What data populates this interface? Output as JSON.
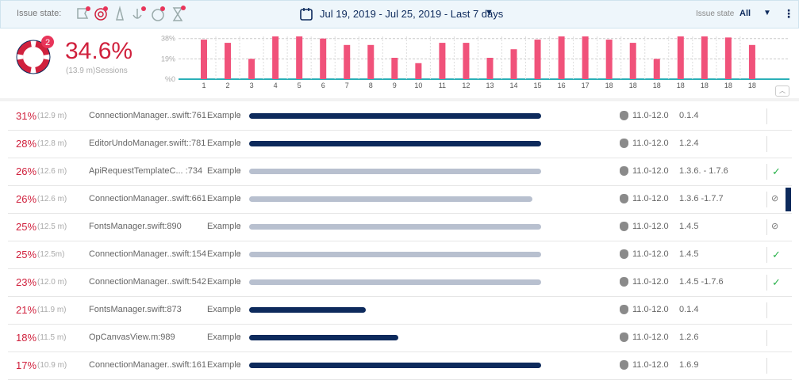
{
  "header": {
    "issue_state_label": "Issue state:",
    "date_range": "Jul 19, 2019 - Jul 25, 2019 - Last 7 days",
    "filter_label": "Issue state",
    "filter_value": "All"
  },
  "summary": {
    "badge": "2",
    "percent": "34.6%",
    "sessions": "(13.9 m)Sessions"
  },
  "chart": {
    "type": "bar",
    "color": "#f0527a",
    "categories": [
      "1",
      "2",
      "3",
      "4",
      "5",
      "6",
      "7",
      "8",
      "9",
      "10",
      "11",
      "12",
      "13",
      "14",
      "15",
      "16",
      "17",
      "18",
      "18",
      "18",
      "18",
      "18",
      "18",
      "18"
    ],
    "values": [
      37,
      34,
      19,
      40,
      40,
      38,
      32,
      32,
      20,
      15,
      34,
      34,
      20,
      28,
      37,
      40,
      40,
      37,
      34,
      19,
      40,
      40,
      39,
      32
    ],
    "ylim": [
      0,
      40
    ],
    "yticks": [
      {
        "value": 38,
        "label": "38%"
      },
      {
        "value": 19,
        "label": "19%"
      },
      {
        "value": 0,
        "label": "%0"
      }
    ]
  },
  "table": {
    "link": "Example",
    "rows": [
      {
        "percent": "31%",
        "time": "(12.9 m)",
        "file": "ConnectionManager..swift:761",
        "progress": 100,
        "color": "#0d2a5c",
        "os": "11.0-12.0",
        "version": "0.1.4"
      },
      {
        "percent": "28%",
        "time": "(12.8 m)",
        "file": "EditorUndoManager.swift::781",
        "progress": 100,
        "color": "#0d2a5c",
        "os": "11.0-12.0",
        "version": "1.2.4"
      },
      {
        "percent": "26%",
        "time": "(12.6 m)",
        "file": "ApiRequestTemplateC...  :734",
        "progress": 100,
        "color": "#b8c0cf",
        "os": "11.0-12.0",
        "version": "1.3.6. - 1.7.6"
      },
      {
        "percent": "26%",
        "time": "(12.6 m)",
        "file": "ConnectionManager..swift:661",
        "progress": 97,
        "color": "#b8c0cf",
        "os": "11.0-12.0",
        "version": "1.3.6 -1.7.7"
      },
      {
        "percent": "25%",
        "time": "(12.5 m)",
        "file": "FontsManager.swift:890",
        "progress": 100,
        "color": "#b8c0cf",
        "os": "11.0-12.0",
        "version": "1.4.5"
      },
      {
        "percent": "25%",
        "time": "(12.5m)",
        "file": "ConnectionManager..swift:154",
        "progress": 100,
        "color": "#b8c0cf",
        "os": "11.0-12.0",
        "version": "1.4.5"
      },
      {
        "percent": "23%",
        "time": "(12.0 m)",
        "file": "ConnectionManager..swift:542",
        "progress": 100,
        "color": "#b8c0cf",
        "os": "11.0-12.0",
        "version": "1.4.5 -1.7.6"
      },
      {
        "percent": "21%",
        "time": "(11.9 m)",
        "file": "FontsManager.swift:873",
        "progress": 40,
        "color": "#0d2a5c",
        "os": "11.0-12.0",
        "version": "0.1.4"
      },
      {
        "percent": "18%",
        "time": "(11.5 m)",
        "file": "OpCanvasView.m:989",
        "progress": 51,
        "color": "#0d2a5c",
        "os": "11.0-12.0",
        "version": "1.2.6"
      },
      {
        "percent": "17%",
        "time": "(10.9 m)",
        "file": "ConnectionManager..swift:161",
        "progress": 100,
        "color": "#0d2a5c",
        "os": "11.0-12.0",
        "version": "1.6.9"
      }
    ]
  }
}
